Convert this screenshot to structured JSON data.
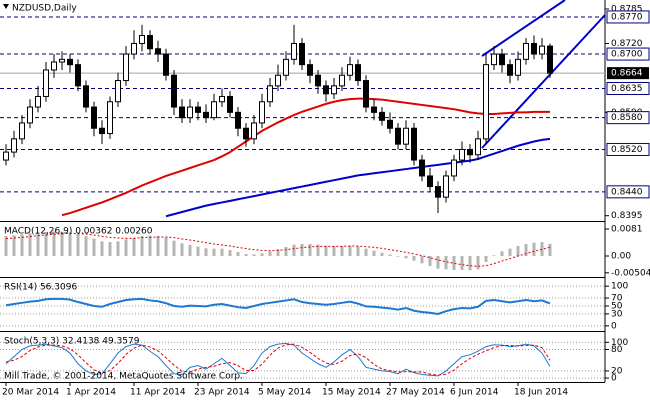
{
  "chart_data": [
    {
      "type": "candlestick",
      "title": "NZDUSD,Daily",
      "categories": [
        "20 Mar 2014",
        null,
        null,
        null,
        null,
        null,
        null,
        null,
        "1 Apr 2014",
        null,
        null,
        null,
        null,
        null,
        null,
        null,
        "11 Apr 2014",
        null,
        null,
        null,
        null,
        null,
        null,
        null,
        "23 Apr 2014",
        null,
        null,
        null,
        null,
        null,
        null,
        null,
        "5 May 2014",
        null,
        null,
        null,
        null,
        null,
        null,
        null,
        "15 May 2014",
        null,
        null,
        null,
        null,
        null,
        null,
        null,
        "27 May 2014",
        null,
        null,
        null,
        null,
        null,
        null,
        null,
        "6 Jun 2014",
        null,
        null,
        null,
        null,
        null,
        null,
        null,
        "18 Jun 2014",
        null,
        null,
        null,
        null
      ],
      "open": [
        0.85,
        0.8515,
        0.854,
        0.857,
        0.86,
        0.862,
        0.867,
        0.8685,
        0.869,
        0.868,
        0.864,
        0.86,
        0.856,
        0.855,
        0.861,
        0.865,
        0.87,
        0.872,
        0.8735,
        0.871,
        0.87,
        0.866,
        0.86,
        0.858,
        0.86,
        0.859,
        0.858,
        0.861,
        0.862,
        0.859,
        0.856,
        0.854,
        0.857,
        0.861,
        0.864,
        0.866,
        0.869,
        0.872,
        0.868,
        0.866,
        0.864,
        0.8625,
        0.864,
        0.866,
        0.868,
        0.865,
        0.86,
        0.859,
        0.8575,
        0.856,
        0.853,
        0.856,
        0.85,
        0.847,
        0.845,
        0.843,
        0.847,
        0.85,
        0.852,
        0.851,
        0.854,
        0.868,
        0.87,
        0.868,
        0.866,
        0.869,
        0.872,
        0.87,
        0.8715
      ],
      "high": [
        0.853,
        0.8555,
        0.8585,
        0.8615,
        0.864,
        0.8685,
        0.87,
        0.8705,
        0.87,
        0.869,
        0.865,
        0.861,
        0.8575,
        0.862,
        0.8665,
        0.8715,
        0.8745,
        0.8755,
        0.8745,
        0.8725,
        0.871,
        0.867,
        0.8615,
        0.8615,
        0.861,
        0.8605,
        0.8625,
        0.8635,
        0.863,
        0.86,
        0.857,
        0.8585,
        0.8625,
        0.8655,
        0.868,
        0.8705,
        0.8755,
        0.873,
        0.869,
        0.867,
        0.865,
        0.8655,
        0.8675,
        0.8695,
        0.869,
        0.866,
        0.8615,
        0.86,
        0.859,
        0.857,
        0.8575,
        0.857,
        0.851,
        0.8485,
        0.846,
        0.848,
        0.851,
        0.8535,
        0.853,
        0.8555,
        0.87,
        0.8715,
        0.871,
        0.869,
        0.8705,
        0.873,
        0.8735,
        0.873,
        0.872
      ],
      "low": [
        0.849,
        0.8505,
        0.853,
        0.856,
        0.859,
        0.861,
        0.8655,
        0.867,
        0.8665,
        0.863,
        0.859,
        0.8545,
        0.853,
        0.854,
        0.86,
        0.864,
        0.869,
        0.8705,
        0.87,
        0.8685,
        0.865,
        0.8585,
        0.857,
        0.857,
        0.8575,
        0.857,
        0.8575,
        0.86,
        0.858,
        0.8545,
        0.8525,
        0.853,
        0.856,
        0.86,
        0.863,
        0.865,
        0.868,
        0.867,
        0.8645,
        0.8625,
        0.861,
        0.8615,
        0.863,
        0.865,
        0.864,
        0.859,
        0.8575,
        0.8565,
        0.855,
        0.852,
        0.852,
        0.849,
        0.846,
        0.844,
        0.84,
        0.842,
        0.846,
        0.849,
        0.8495,
        0.85,
        0.853,
        0.867,
        0.8665,
        0.8645,
        0.865,
        0.868,
        0.869,
        0.869,
        0.8655
      ],
      "close": [
        0.8515,
        0.854,
        0.857,
        0.86,
        0.862,
        0.867,
        0.8685,
        0.869,
        0.868,
        0.864,
        0.86,
        0.856,
        0.855,
        0.861,
        0.865,
        0.87,
        0.872,
        0.8735,
        0.871,
        0.87,
        0.866,
        0.86,
        0.858,
        0.86,
        0.859,
        0.858,
        0.861,
        0.862,
        0.859,
        0.856,
        0.854,
        0.857,
        0.861,
        0.864,
        0.866,
        0.869,
        0.872,
        0.868,
        0.866,
        0.864,
        0.8625,
        0.864,
        0.866,
        0.868,
        0.865,
        0.86,
        0.859,
        0.8575,
        0.856,
        0.853,
        0.856,
        0.85,
        0.847,
        0.845,
        0.843,
        0.847,
        0.85,
        0.852,
        0.851,
        0.854,
        0.868,
        0.87,
        0.868,
        0.866,
        0.869,
        0.872,
        0.87,
        0.8715,
        0.8664
      ],
      "moving_averages": [
        {
          "color": "#e00000",
          "values": [
            null,
            null,
            null,
            null,
            null,
            null,
            null,
            0.8396,
            0.84,
            0.8405,
            0.841,
            0.8415,
            0.842,
            0.8426,
            0.8432,
            0.8438,
            0.8445,
            0.8452,
            0.8458,
            0.8464,
            0.847,
            0.8475,
            0.848,
            0.8485,
            0.849,
            0.8495,
            0.85,
            0.8507,
            0.8515,
            0.8525,
            0.8535,
            0.8545,
            0.8555,
            0.8563,
            0.8571,
            0.8578,
            0.8585,
            0.8591,
            0.8596,
            0.8601,
            0.8606,
            0.861,
            0.8613,
            0.8615,
            0.8616,
            0.8616,
            0.8615,
            0.8614,
            0.8612,
            0.861,
            0.8608,
            0.8606,
            0.8604,
            0.8602,
            0.86,
            0.8598,
            0.8596,
            0.8593,
            0.859,
            0.8588,
            0.8587,
            0.8587,
            0.8588,
            0.8589,
            0.859,
            0.859,
            0.8591,
            0.8591,
            0.8591
          ]
        },
        {
          "color": "#0000cc",
          "values": [
            null,
            null,
            null,
            null,
            null,
            null,
            null,
            null,
            null,
            null,
            null,
            null,
            null,
            null,
            null,
            null,
            null,
            null,
            null,
            null,
            0.8394,
            0.8398,
            0.8402,
            0.8406,
            0.841,
            0.8414,
            0.8417,
            0.842,
            0.8423,
            0.8426,
            0.8429,
            0.8432,
            0.8435,
            0.8438,
            0.8441,
            0.8444,
            0.8447,
            0.845,
            0.8453,
            0.8456,
            0.8459,
            0.8462,
            0.8465,
            0.8468,
            0.8471,
            0.8473,
            0.8475,
            0.8477,
            0.8479,
            0.8481,
            0.8483,
            0.8485,
            0.8487,
            0.8489,
            0.8491,
            0.8493,
            0.8495,
            0.8497,
            0.8499,
            0.8502,
            0.8507,
            0.8512,
            0.8517,
            0.8522,
            0.8527,
            0.8531,
            0.8535,
            0.8538,
            0.854
          ]
        }
      ],
      "levels": [
        {
          "value": 0.877,
          "label": "0.8770"
        },
        {
          "value": 0.87,
          "label": "0.8700"
        },
        {
          "value": 0.8635,
          "label": "0.8635"
        },
        {
          "value": 0.858,
          "label": "0.8580"
        },
        {
          "value": 0.852,
          "label": "0.8520"
        },
        {
          "value": 0.844,
          "label": "0.8440"
        }
      ],
      "last_price": 0.8664,
      "ylim": [
        0.8385,
        0.8802
      ],
      "yticks": [
        0.8785,
        {
          "value": 0.872,
          "label": "0.8720"
        },
        {
          "value": 0.859,
          "label": "0.8590"
        },
        0.8395
      ]
    },
    {
      "type": "macd",
      "label": "MACD(12,26,9) 0.00362 0.00260",
      "values": [
        0.006,
        0.0062,
        0.0065,
        0.0068,
        0.007,
        0.0072,
        0.0074,
        0.0073,
        0.0071,
        0.0066,
        0.006,
        0.0052,
        0.0044,
        0.0042,
        0.0044,
        0.005,
        0.0055,
        0.006,
        0.0061,
        0.006,
        0.0055,
        0.0046,
        0.0038,
        0.0033,
        0.0028,
        0.0023,
        0.0022,
        0.0022,
        0.0018,
        0.0012,
        0.0006,
        0.0005,
        0.0008,
        0.0014,
        0.002,
        0.0027,
        0.0034,
        0.0036,
        0.0036,
        0.0034,
        0.0031,
        0.003,
        0.003,
        0.0031,
        0.0029,
        0.0022,
        0.0016,
        0.001,
        0.0004,
        -0.0002,
        -0.0007,
        -0.0014,
        -0.0022,
        -0.003,
        -0.0038,
        -0.004,
        -0.0042,
        -0.0042,
        -0.0043,
        -0.004,
        -0.0018,
        0.0002,
        0.0014,
        0.0022,
        0.003,
        0.0036,
        0.004,
        0.0042,
        0.00362
      ],
      "signal": [
        0.0052,
        0.0054,
        0.0056,
        0.0058,
        0.0061,
        0.0063,
        0.0065,
        0.0067,
        0.0068,
        0.0067,
        0.0066,
        0.0063,
        0.0059,
        0.0056,
        0.0054,
        0.0053,
        0.0053,
        0.0055,
        0.0056,
        0.0057,
        0.0057,
        0.0055,
        0.0051,
        0.0048,
        0.0044,
        0.004,
        0.0036,
        0.0033,
        0.003,
        0.0026,
        0.0022,
        0.0019,
        0.0017,
        0.0016,
        0.0017,
        0.0019,
        0.0022,
        0.0025,
        0.0027,
        0.0029,
        0.0029,
        0.0029,
        0.0029,
        0.003,
        0.003,
        0.0028,
        0.0026,
        0.0023,
        0.0019,
        0.0015,
        0.0011,
        0.0006,
        0.0001,
        -0.0005,
        -0.0012,
        -0.0017,
        -0.0022,
        -0.0026,
        -0.0029,
        -0.0031,
        -0.0029,
        -0.0023,
        -0.0015,
        -0.0008,
        0.0,
        0.0007,
        0.0014,
        0.002,
        0.0026
      ],
      "color": "#b4b4b4",
      "signal_color": "#e00000",
      "ylim": [
        -0.0063,
        0.0099
      ],
      "yticks": [
        0.0081,
        {
          "value": 0,
          "label": "0.00"
        },
        -0.00504
      ]
    },
    {
      "type": "rsi",
      "label": "RSI(14) 56.3096",
      "values": [
        52,
        55,
        58,
        61,
        63,
        67,
        68,
        68,
        66,
        60,
        55,
        50,
        48,
        55,
        60,
        65,
        67,
        68,
        64,
        62,
        57,
        50,
        48,
        51,
        50,
        49,
        53,
        55,
        51,
        47,
        45,
        50,
        55,
        58,
        61,
        64,
        67,
        60,
        57,
        55,
        53,
        55,
        58,
        61,
        56,
        49,
        48,
        46,
        44,
        41,
        45,
        38,
        35,
        33,
        30,
        37,
        42,
        45,
        44,
        48,
        63,
        65,
        62,
        59,
        62,
        65,
        62,
        64,
        56.3096
      ],
      "color": "#1e78d2",
      "ylim": [
        -13,
        118
      ],
      "yticks": [
        100,
        70,
        50,
        30,
        0
      ]
    },
    {
      "type": "stoch",
      "label": "Stoch(5,3,3) 32.4138 49.3579",
      "annotation": "Mill Trade, © 2001-2014, MetaQuotes Software Corp.",
      "main": [
        40,
        60,
        80,
        90,
        92,
        95,
        90,
        85,
        70,
        40,
        20,
        10,
        12,
        40,
        70,
        88,
        95,
        92,
        75,
        60,
        35,
        12,
        10,
        30,
        35,
        25,
        40,
        55,
        35,
        15,
        12,
        35,
        70,
        88,
        95,
        97,
        92,
        70,
        55,
        40,
        30,
        45,
        65,
        80,
        60,
        30,
        25,
        20,
        18,
        12,
        25,
        15,
        10,
        8,
        6,
        20,
        40,
        60,
        65,
        75,
        88,
        93,
        92,
        88,
        90,
        95,
        90,
        70,
        32.4138
      ],
      "signal": [
        45,
        50,
        60,
        77,
        87,
        92,
        92,
        90,
        82,
        65,
        43,
        23,
        14,
        21,
        41,
        66,
        84,
        92,
        87,
        76,
        57,
        36,
        19,
        17,
        25,
        30,
        33,
        40,
        43,
        35,
        21,
        21,
        39,
        64,
        84,
        93,
        95,
        86,
        72,
        55,
        42,
        38,
        47,
        63,
        68,
        57,
        38,
        25,
        21,
        17,
        18,
        17,
        17,
        11,
        8,
        11,
        22,
        40,
        55,
        67,
        76,
        85,
        91,
        91,
        90,
        91,
        92,
        85,
        49.3579
      ],
      "main_color": "#1e78d2",
      "signal_color": "#e00000",
      "ylim": [
        -11,
        126
      ],
      "yticks": [
        100,
        80,
        20,
        0
      ]
    }
  ]
}
